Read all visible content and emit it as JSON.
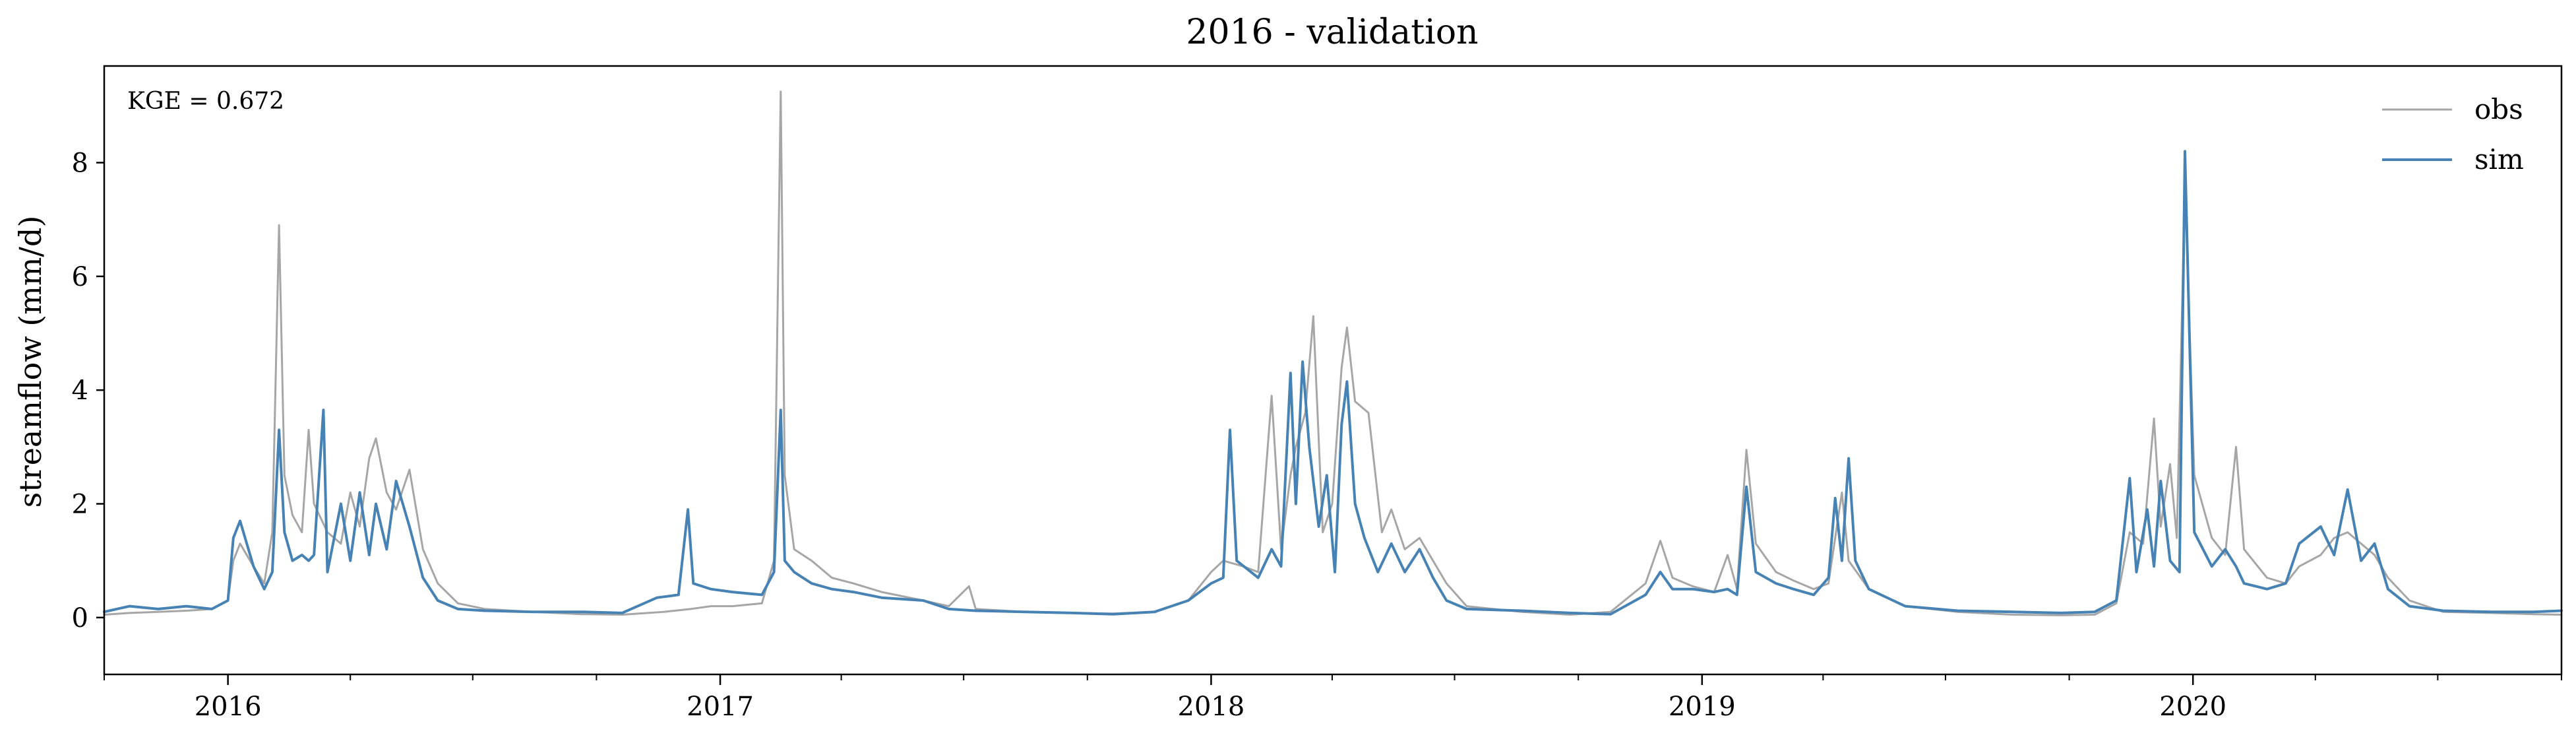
{
  "chart_data": {
    "type": "line",
    "title": "2016 - validation",
    "xlabel": "",
    "ylabel": "streamflow (mm/d)",
    "xlim": [
      "2015-10-01",
      "2020-10-01"
    ],
    "ylim": [
      -1,
      9.7
    ],
    "y_ticks": [
      0,
      2,
      4,
      6,
      8
    ],
    "y_tick_labels": [
      "0",
      "2",
      "4",
      "6",
      "8"
    ],
    "x_major_ticks": [
      "2016-01-01",
      "2017-01-01",
      "2018-01-01",
      "2019-01-01",
      "2020-01-01"
    ],
    "x_major_tick_labels": [
      "2016",
      "2017",
      "2018",
      "2019",
      "2020"
    ],
    "x_minor_ticks": [
      "2015-10-01",
      "2016-04-01",
      "2016-07-01",
      "2016-10-01",
      "2017-04-01",
      "2017-07-01",
      "2017-10-01",
      "2018-04-01",
      "2018-07-01",
      "2018-10-01",
      "2019-04-01",
      "2019-07-01",
      "2019-10-01",
      "2020-04-01",
      "2020-07-01",
      "2020-10-01"
    ],
    "grid": false,
    "legend_position": "top-right",
    "annotation": "KGE = 0.672",
    "series": [
      {
        "name": "obs",
        "color": "#a6a6a6",
        "points": [
          [
            "2015-10-01",
            0.05
          ],
          [
            "2015-10-20",
            0.08
          ],
          [
            "2015-11-10",
            0.1
          ],
          [
            "2015-12-01",
            0.12
          ],
          [
            "2015-12-20",
            0.15
          ],
          [
            "2016-01-01",
            0.3
          ],
          [
            "2016-01-05",
            1.0
          ],
          [
            "2016-01-10",
            1.3
          ],
          [
            "2016-01-20",
            0.9
          ],
          [
            "2016-01-28",
            0.6
          ],
          [
            "2016-02-03",
            1.5
          ],
          [
            "2016-02-08",
            6.9
          ],
          [
            "2016-02-12",
            2.5
          ],
          [
            "2016-02-18",
            1.8
          ],
          [
            "2016-02-25",
            1.5
          ],
          [
            "2016-03-01",
            3.3
          ],
          [
            "2016-03-05",
            2.0
          ],
          [
            "2016-03-15",
            1.5
          ],
          [
            "2016-03-25",
            1.3
          ],
          [
            "2016-04-01",
            2.2
          ],
          [
            "2016-04-08",
            1.6
          ],
          [
            "2016-04-15",
            2.8
          ],
          [
            "2016-04-20",
            3.15
          ],
          [
            "2016-04-28",
            2.2
          ],
          [
            "2016-05-05",
            1.9
          ],
          [
            "2016-05-15",
            2.6
          ],
          [
            "2016-05-25",
            1.2
          ],
          [
            "2016-06-05",
            0.6
          ],
          [
            "2016-06-20",
            0.25
          ],
          [
            "2016-07-10",
            0.15
          ],
          [
            "2016-08-15",
            0.1
          ],
          [
            "2016-09-20",
            0.06
          ],
          [
            "2016-10-20",
            0.05
          ],
          [
            "2016-11-20",
            0.1
          ],
          [
            "2016-12-10",
            0.15
          ],
          [
            "2016-12-25",
            0.2
          ],
          [
            "2017-01-10",
            0.2
          ],
          [
            "2017-02-01",
            0.25
          ],
          [
            "2017-02-10",
            1.0
          ],
          [
            "2017-02-15",
            9.25
          ],
          [
            "2017-02-18",
            2.5
          ],
          [
            "2017-02-25",
            1.2
          ],
          [
            "2017-03-10",
            1.0
          ],
          [
            "2017-03-25",
            0.7
          ],
          [
            "2017-04-10",
            0.6
          ],
          [
            "2017-05-01",
            0.45
          ],
          [
            "2017-06-01",
            0.3
          ],
          [
            "2017-06-20",
            0.2
          ],
          [
            "2017-07-05",
            0.55
          ],
          [
            "2017-07-10",
            0.15
          ],
          [
            "2017-08-15",
            0.1
          ],
          [
            "2017-09-20",
            0.08
          ],
          [
            "2017-10-20",
            0.07
          ],
          [
            "2017-11-20",
            0.1
          ],
          [
            "2017-12-15",
            0.3
          ],
          [
            "2018-01-01",
            0.8
          ],
          [
            "2018-01-10",
            1.0
          ],
          [
            "2018-01-25",
            0.9
          ],
          [
            "2018-02-05",
            0.8
          ],
          [
            "2018-02-15",
            3.9
          ],
          [
            "2018-02-22",
            1.2
          ],
          [
            "2018-03-01",
            2.5
          ],
          [
            "2018-03-05",
            3.0
          ],
          [
            "2018-03-12",
            3.6
          ],
          [
            "2018-03-18",
            5.3
          ],
          [
            "2018-03-25",
            1.5
          ],
          [
            "2018-04-01",
            2.0
          ],
          [
            "2018-04-08",
            4.4
          ],
          [
            "2018-04-12",
            5.1
          ],
          [
            "2018-04-18",
            3.8
          ],
          [
            "2018-04-28",
            3.6
          ],
          [
            "2018-05-08",
            1.5
          ],
          [
            "2018-05-15",
            1.9
          ],
          [
            "2018-05-25",
            1.2
          ],
          [
            "2018-06-05",
            1.4
          ],
          [
            "2018-06-15",
            1.0
          ],
          [
            "2018-06-25",
            0.6
          ],
          [
            "2018-07-10",
            0.2
          ],
          [
            "2018-08-20",
            0.1
          ],
          [
            "2018-09-25",
            0.05
          ],
          [
            "2018-10-25",
            0.1
          ],
          [
            "2018-11-20",
            0.6
          ],
          [
            "2018-12-01",
            1.35
          ],
          [
            "2018-12-10",
            0.7
          ],
          [
            "2018-12-25",
            0.55
          ],
          [
            "2019-01-10",
            0.45
          ],
          [
            "2019-01-20",
            1.1
          ],
          [
            "2019-01-27",
            0.5
          ],
          [
            "2019-02-03",
            2.95
          ],
          [
            "2019-02-10",
            1.3
          ],
          [
            "2019-02-25",
            0.8
          ],
          [
            "2019-03-10",
            0.65
          ],
          [
            "2019-03-25",
            0.5
          ],
          [
            "2019-04-05",
            0.6
          ],
          [
            "2019-04-15",
            2.2
          ],
          [
            "2019-04-20",
            1.0
          ],
          [
            "2019-05-05",
            0.5
          ],
          [
            "2019-06-01",
            0.2
          ],
          [
            "2019-07-10",
            0.1
          ],
          [
            "2019-08-20",
            0.05
          ],
          [
            "2019-09-25",
            0.04
          ],
          [
            "2019-10-20",
            0.05
          ],
          [
            "2019-11-05",
            0.25
          ],
          [
            "2019-11-15",
            1.5
          ],
          [
            "2019-11-25",
            1.3
          ],
          [
            "2019-12-03",
            3.5
          ],
          [
            "2019-12-08",
            1.6
          ],
          [
            "2019-12-15",
            2.7
          ],
          [
            "2019-12-20",
            1.4
          ],
          [
            "2019-12-26",
            7.6
          ],
          [
            "2020-01-02",
            2.5
          ],
          [
            "2020-01-15",
            1.4
          ],
          [
            "2020-01-25",
            1.1
          ],
          [
            "2020-02-02",
            3.0
          ],
          [
            "2020-02-08",
            1.2
          ],
          [
            "2020-02-25",
            0.7
          ],
          [
            "2020-03-10",
            0.6
          ],
          [
            "2020-03-20",
            0.9
          ],
          [
            "2020-04-05",
            1.1
          ],
          [
            "2020-04-15",
            1.4
          ],
          [
            "2020-04-25",
            1.5
          ],
          [
            "2020-05-05",
            1.3
          ],
          [
            "2020-05-15",
            1.1
          ],
          [
            "2020-05-25",
            0.7
          ],
          [
            "2020-06-10",
            0.3
          ],
          [
            "2020-07-05",
            0.1
          ],
          [
            "2020-08-10",
            0.08
          ],
          [
            "2020-09-10",
            0.06
          ],
          [
            "2020-10-01",
            0.05
          ]
        ]
      },
      {
        "name": "sim",
        "color": "#4682b4",
        "points": [
          [
            "2015-10-01",
            0.1
          ],
          [
            "2015-10-20",
            0.2
          ],
          [
            "2015-11-10",
            0.15
          ],
          [
            "2015-12-01",
            0.2
          ],
          [
            "2015-12-20",
            0.15
          ],
          [
            "2016-01-01",
            0.3
          ],
          [
            "2016-01-05",
            1.4
          ],
          [
            "2016-01-10",
            1.7
          ],
          [
            "2016-01-20",
            0.9
          ],
          [
            "2016-01-28",
            0.5
          ],
          [
            "2016-02-03",
            0.8
          ],
          [
            "2016-02-08",
            3.3
          ],
          [
            "2016-02-12",
            1.5
          ],
          [
            "2016-02-18",
            1.0
          ],
          [
            "2016-02-25",
            1.1
          ],
          [
            "2016-03-01",
            1.0
          ],
          [
            "2016-03-05",
            1.1
          ],
          [
            "2016-03-12",
            3.65
          ],
          [
            "2016-03-15",
            0.8
          ],
          [
            "2016-03-25",
            2.0
          ],
          [
            "2016-04-01",
            1.0
          ],
          [
            "2016-04-08",
            2.2
          ],
          [
            "2016-04-15",
            1.1
          ],
          [
            "2016-04-20",
            2.0
          ],
          [
            "2016-04-28",
            1.2
          ],
          [
            "2016-05-05",
            2.4
          ],
          [
            "2016-05-15",
            1.6
          ],
          [
            "2016-05-25",
            0.7
          ],
          [
            "2016-06-05",
            0.3
          ],
          [
            "2016-06-20",
            0.15
          ],
          [
            "2016-07-10",
            0.12
          ],
          [
            "2016-08-15",
            0.1
          ],
          [
            "2016-09-20",
            0.1
          ],
          [
            "2016-10-20",
            0.08
          ],
          [
            "2016-11-15",
            0.35
          ],
          [
            "2016-12-01",
            0.4
          ],
          [
            "2016-12-08",
            1.9
          ],
          [
            "2016-12-12",
            0.6
          ],
          [
            "2016-12-25",
            0.5
          ],
          [
            "2017-01-10",
            0.45
          ],
          [
            "2017-02-01",
            0.4
          ],
          [
            "2017-02-10",
            0.8
          ],
          [
            "2017-02-15",
            3.65
          ],
          [
            "2017-02-18",
            1.0
          ],
          [
            "2017-02-25",
            0.8
          ],
          [
            "2017-03-10",
            0.6
          ],
          [
            "2017-03-25",
            0.5
          ],
          [
            "2017-04-10",
            0.45
          ],
          [
            "2017-05-01",
            0.35
          ],
          [
            "2017-06-01",
            0.3
          ],
          [
            "2017-06-20",
            0.15
          ],
          [
            "2017-07-10",
            0.12
          ],
          [
            "2017-08-15",
            0.1
          ],
          [
            "2017-09-20",
            0.08
          ],
          [
            "2017-10-20",
            0.06
          ],
          [
            "2017-11-20",
            0.1
          ],
          [
            "2017-12-15",
            0.3
          ],
          [
            "2018-01-01",
            0.6
          ],
          [
            "2018-01-10",
            0.7
          ],
          [
            "2018-01-15",
            3.3
          ],
          [
            "2018-01-20",
            1.0
          ],
          [
            "2018-02-05",
            0.7
          ],
          [
            "2018-02-15",
            1.2
          ],
          [
            "2018-02-22",
            0.9
          ],
          [
            "2018-03-01",
            4.3
          ],
          [
            "2018-03-05",
            2.0
          ],
          [
            "2018-03-10",
            4.5
          ],
          [
            "2018-03-15",
            3.0
          ],
          [
            "2018-03-22",
            1.6
          ],
          [
            "2018-03-28",
            2.5
          ],
          [
            "2018-04-03",
            0.8
          ],
          [
            "2018-04-08",
            3.4
          ],
          [
            "2018-04-12",
            4.15
          ],
          [
            "2018-04-18",
            2.0
          ],
          [
            "2018-04-25",
            1.4
          ],
          [
            "2018-05-05",
            0.8
          ],
          [
            "2018-05-15",
            1.3
          ],
          [
            "2018-05-25",
            0.8
          ],
          [
            "2018-06-05",
            1.2
          ],
          [
            "2018-06-15",
            0.7
          ],
          [
            "2018-06-25",
            0.3
          ],
          [
            "2018-07-10",
            0.15
          ],
          [
            "2018-08-20",
            0.12
          ],
          [
            "2018-09-25",
            0.08
          ],
          [
            "2018-10-25",
            0.06
          ],
          [
            "2018-11-20",
            0.4
          ],
          [
            "2018-12-01",
            0.8
          ],
          [
            "2018-12-10",
            0.5
          ],
          [
            "2018-12-25",
            0.5
          ],
          [
            "2019-01-10",
            0.45
          ],
          [
            "2019-01-20",
            0.5
          ],
          [
            "2019-01-27",
            0.4
          ],
          [
            "2019-02-03",
            2.3
          ],
          [
            "2019-02-10",
            0.8
          ],
          [
            "2019-02-25",
            0.6
          ],
          [
            "2019-03-10",
            0.5
          ],
          [
            "2019-03-25",
            0.4
          ],
          [
            "2019-04-05",
            0.7
          ],
          [
            "2019-04-10",
            2.1
          ],
          [
            "2019-04-15",
            1.0
          ],
          [
            "2019-04-20",
            2.8
          ],
          [
            "2019-04-25",
            1.0
          ],
          [
            "2019-05-05",
            0.5
          ],
          [
            "2019-06-01",
            0.2
          ],
          [
            "2019-07-10",
            0.12
          ],
          [
            "2019-08-20",
            0.1
          ],
          [
            "2019-09-25",
            0.08
          ],
          [
            "2019-10-20",
            0.1
          ],
          [
            "2019-11-05",
            0.3
          ],
          [
            "2019-11-15",
            2.45
          ],
          [
            "2019-11-20",
            0.8
          ],
          [
            "2019-11-28",
            1.9
          ],
          [
            "2019-12-03",
            0.9
          ],
          [
            "2019-12-08",
            2.4
          ],
          [
            "2019-12-15",
            1.0
          ],
          [
            "2019-12-22",
            0.8
          ],
          [
            "2019-12-26",
            8.2
          ],
          [
            "2020-01-02",
            1.5
          ],
          [
            "2020-01-15",
            0.9
          ],
          [
            "2020-01-25",
            1.2
          ],
          [
            "2020-02-02",
            0.9
          ],
          [
            "2020-02-08",
            0.6
          ],
          [
            "2020-02-25",
            0.5
          ],
          [
            "2020-03-10",
            0.6
          ],
          [
            "2020-03-20",
            1.3
          ],
          [
            "2020-04-05",
            1.6
          ],
          [
            "2020-04-15",
            1.1
          ],
          [
            "2020-04-25",
            2.25
          ],
          [
            "2020-05-05",
            1.0
          ],
          [
            "2020-05-15",
            1.3
          ],
          [
            "2020-05-25",
            0.5
          ],
          [
            "2020-06-10",
            0.2
          ],
          [
            "2020-07-05",
            0.12
          ],
          [
            "2020-08-10",
            0.1
          ],
          [
            "2020-09-10",
            0.1
          ],
          [
            "2020-10-01",
            0.12
          ]
        ]
      }
    ]
  }
}
